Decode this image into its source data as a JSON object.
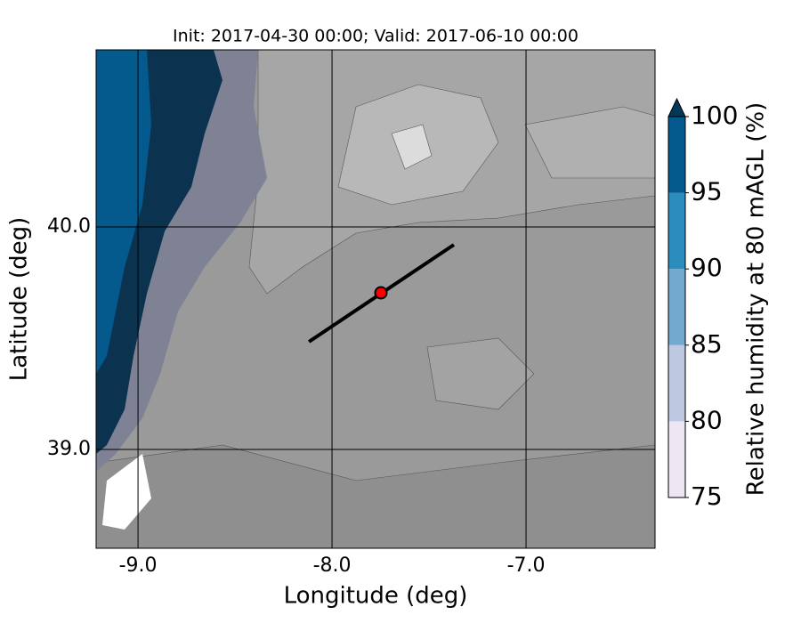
{
  "chart_data": {
    "type": "map",
    "title": "Init: 2017-04-30 00:00; Valid: 2017-06-10 00:00",
    "xlabel": "Longitude (deg)",
    "ylabel": "Latitude (deg)",
    "xlim": [
      -9.216,
      -6.335
    ],
    "ylim": [
      38.556,
      40.796
    ],
    "xticks": [
      {
        "value": -9,
        "label": "-9.0"
      },
      {
        "value": -8,
        "label": "-8.0"
      },
      {
        "value": -7,
        "label": "-7.0"
      }
    ],
    "yticks": [
      {
        "value": 39,
        "label": "39.0"
      },
      {
        "value": 40,
        "label": "40.0"
      }
    ],
    "grid": true,
    "cross_section": {
      "x": [
        -8.119,
        -7.372
      ],
      "y": [
        39.484,
        39.92
      ],
      "color": "#000000"
    },
    "point": {
      "x": -7.748,
      "y": 39.704,
      "color": "#ff0000"
    },
    "colorbar": {
      "label": "Relative humidity at 80 mAGL (%)",
      "lim": [
        75,
        100
      ],
      "ticks": [
        75,
        80,
        85,
        90,
        95,
        100
      ],
      "colors": [
        "#ece7f2",
        "#bdc9e1",
        "#74a9cf",
        "#2b8cbe",
        "#045a8d"
      ],
      "extend_color": "#023858"
    }
  }
}
